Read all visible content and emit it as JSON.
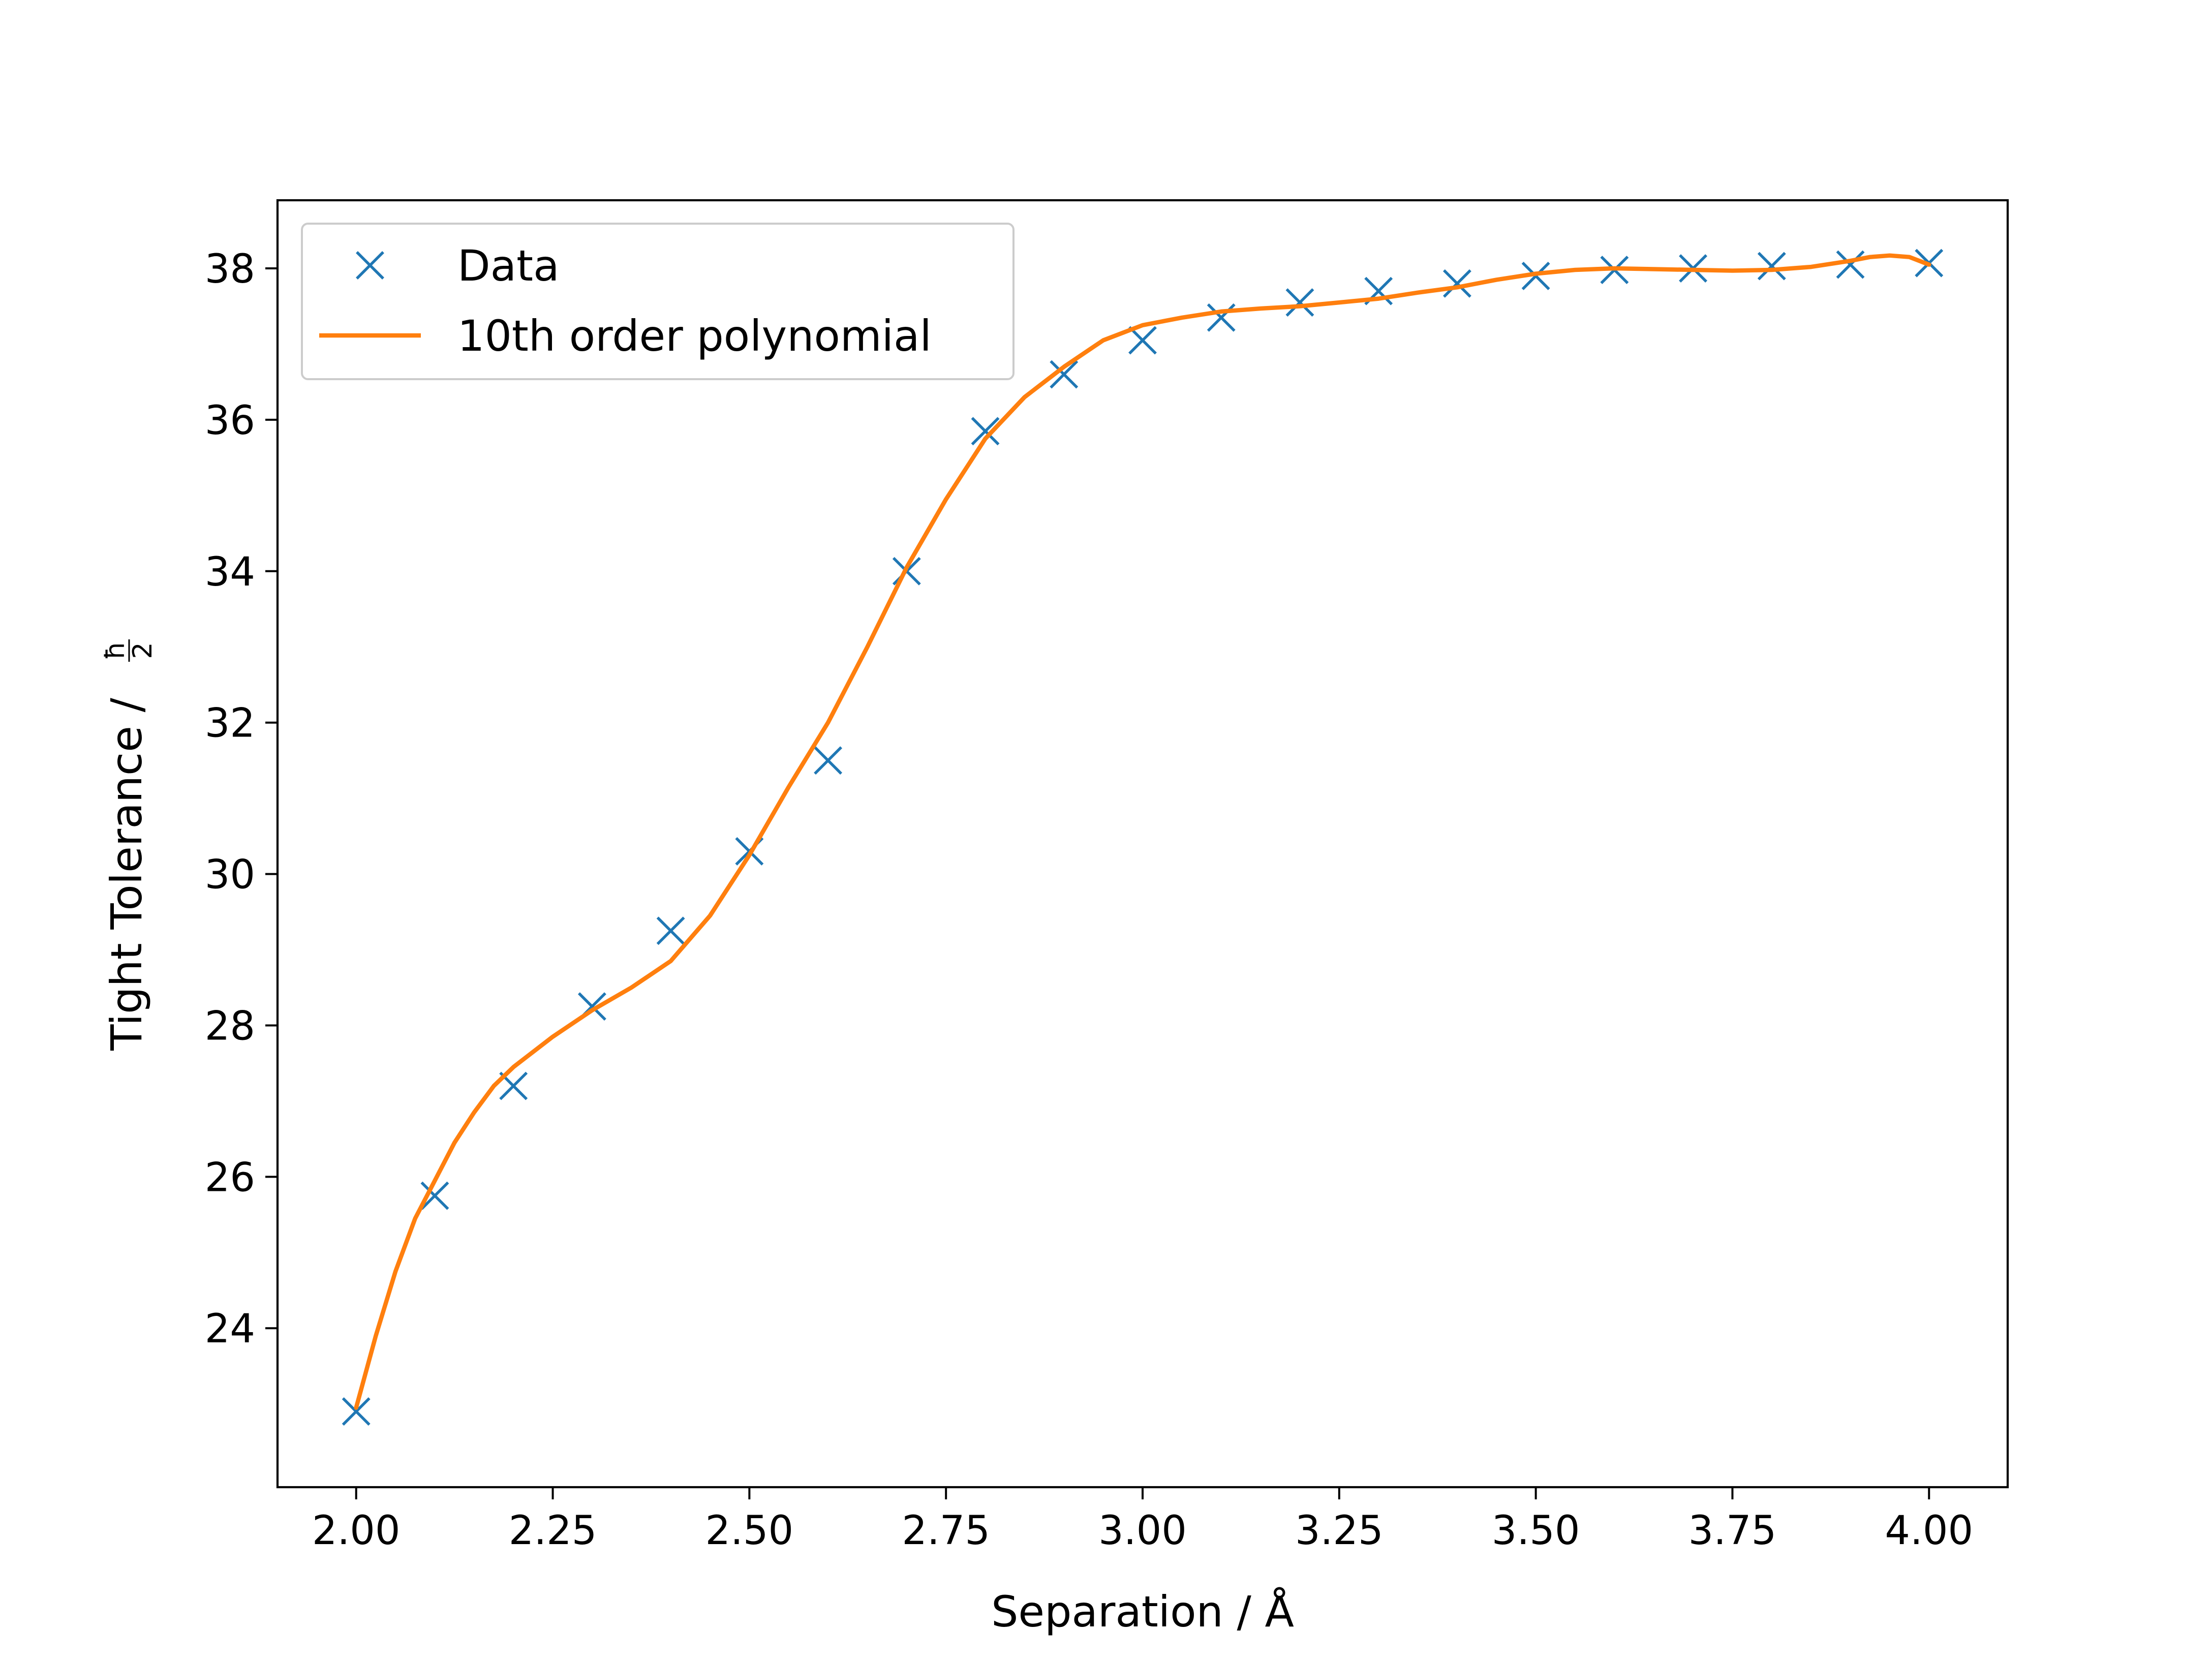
{
  "chart_data": {
    "type": "scatter",
    "xlabel": "Separation / Å",
    "ylabel_text": "Tight Tolerance /",
    "ylabel_fraction": {
      "numerator": "ħ",
      "denominator": "2"
    },
    "xlim": [
      1.9,
      4.1
    ],
    "ylim": [
      21.9,
      38.9
    ],
    "xticks": [
      2.0,
      2.25,
      2.5,
      2.75,
      3.0,
      3.25,
      3.5,
      3.75,
      4.0
    ],
    "xtick_labels": [
      "2.00",
      "2.25",
      "2.50",
      "2.75",
      "3.00",
      "3.25",
      "3.50",
      "3.75",
      "4.00"
    ],
    "yticks": [
      24,
      26,
      28,
      30,
      32,
      34,
      36,
      38
    ],
    "ytick_labels": [
      "24",
      "26",
      "28",
      "30",
      "32",
      "34",
      "36",
      "38"
    ],
    "grid": false,
    "legend": {
      "position": "upper-left",
      "entries": [
        {
          "label": "Data",
          "marker": "x",
          "color": "#1f77b4"
        },
        {
          "label": "10th order polynomial",
          "marker": "line",
          "color": "#ff7f0e"
        }
      ]
    },
    "series": [
      {
        "name": "Data",
        "style": "markers-x",
        "color": "#1f77b4",
        "x": [
          2.0,
          2.1,
          2.2,
          2.3,
          2.4,
          2.5,
          2.6,
          2.7,
          2.8,
          2.9,
          3.0,
          3.1,
          3.2,
          3.3,
          3.4,
          3.5,
          3.6,
          3.7,
          3.8,
          3.9,
          4.0
        ],
        "y": [
          22.9,
          25.75,
          27.2,
          28.25,
          29.25,
          30.3,
          31.5,
          34.0,
          35.85,
          36.6,
          37.05,
          37.35,
          37.55,
          37.7,
          37.8,
          37.9,
          37.98,
          38.0,
          38.03,
          38.05,
          38.07
        ]
      },
      {
        "name": "10th order polynomial",
        "style": "line",
        "color": "#ff7f0e",
        "x": [
          2.0,
          2.025,
          2.05,
          2.075,
          2.1,
          2.125,
          2.15,
          2.175,
          2.2,
          2.25,
          2.3,
          2.35,
          2.4,
          2.45,
          2.5,
          2.55,
          2.6,
          2.65,
          2.7,
          2.75,
          2.8,
          2.85,
          2.9,
          2.95,
          3.0,
          3.05,
          3.1,
          3.15,
          3.2,
          3.25,
          3.3,
          3.35,
          3.4,
          3.45,
          3.5,
          3.55,
          3.6,
          3.65,
          3.7,
          3.75,
          3.8,
          3.85,
          3.9,
          3.925,
          3.95,
          3.975,
          4.0
        ],
        "y": [
          22.95,
          23.9,
          24.75,
          25.45,
          25.95,
          26.45,
          26.85,
          27.2,
          27.45,
          27.85,
          28.2,
          28.5,
          28.85,
          29.45,
          30.25,
          31.15,
          32.0,
          33.0,
          34.05,
          34.95,
          35.75,
          36.3,
          36.7,
          37.05,
          37.25,
          37.35,
          37.43,
          37.47,
          37.5,
          37.55,
          37.6,
          37.68,
          37.75,
          37.85,
          37.93,
          37.98,
          38.0,
          37.99,
          37.98,
          37.97,
          37.98,
          38.02,
          38.1,
          38.15,
          38.17,
          38.15,
          38.05
        ]
      }
    ]
  }
}
